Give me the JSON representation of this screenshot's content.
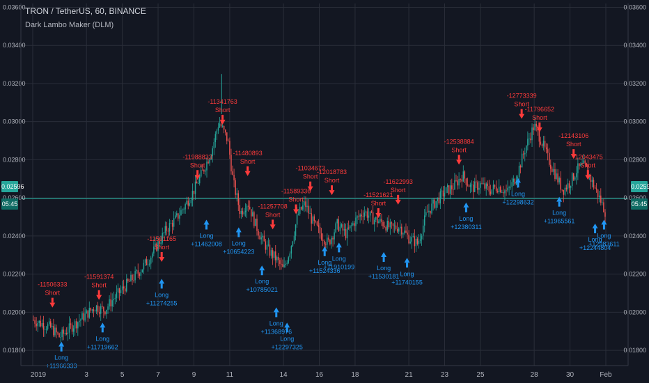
{
  "header": {
    "symbol": "TRON / TetherUS, 60, BINANCE",
    "indicator": "Dark Lambo Maker (DLM)"
  },
  "price_label": "0.02596",
  "countdown": "05:45",
  "colors": {
    "background": "#131722",
    "grid": "#2a2e39",
    "up": "#26a69a",
    "down": "#ef5350",
    "long": "#2196f3",
    "short": "#ff3b3b",
    "price_line": "#26a69a"
  },
  "chart_data": {
    "type": "candlestick",
    "y_axis": {
      "ylim": [
        0.0172,
        0.0362
      ],
      "ticks": [
        "0.01800",
        "0.02000",
        "0.02200",
        "0.02400",
        "0.02600",
        "0.02800",
        "0.03000",
        "0.03200",
        "0.03400",
        "0.03600"
      ]
    },
    "x_axis": {
      "ticks": [
        "2019",
        "3",
        "5",
        "7",
        "9",
        "11",
        "14",
        "16",
        "18",
        "21",
        "23",
        "25",
        "28",
        "30",
        "Feb"
      ]
    },
    "current_price": 0.02596,
    "price_path": [
      [
        0,
        0.0196
      ],
      [
        1.0,
        0.0192
      ],
      [
        1.5,
        0.0187
      ],
      [
        2.0,
        0.0191
      ],
      [
        2.5,
        0.0195
      ],
      [
        3.0,
        0.0199
      ],
      [
        3.5,
        0.0203
      ],
      [
        4.0,
        0.0201
      ],
      [
        4.5,
        0.0207
      ],
      [
        5.0,
        0.0212
      ],
      [
        5.5,
        0.0217
      ],
      [
        6.0,
        0.0222
      ],
      [
        6.5,
        0.0228
      ],
      [
        7.0,
        0.0236
      ],
      [
        7.5,
        0.0244
      ],
      [
        8.0,
        0.0249
      ],
      [
        8.5,
        0.0256
      ],
      [
        9.0,
        0.0264
      ],
      [
        9.5,
        0.0274
      ],
      [
        10.0,
        0.0285
      ],
      [
        10.4,
        0.03
      ],
      [
        10.6,
        0.0296
      ],
      [
        10.9,
        0.029
      ],
      [
        11.2,
        0.0268
      ],
      [
        11.6,
        0.0252
      ],
      [
        12.0,
        0.0258
      ],
      [
        12.4,
        0.0247
      ],
      [
        12.8,
        0.0238
      ],
      [
        13.2,
        0.0232
      ],
      [
        13.6,
        0.0228
      ],
      [
        14.0,
        0.0222
      ],
      [
        14.4,
        0.0234
      ],
      [
        14.8,
        0.0251
      ],
      [
        15.2,
        0.0257
      ],
      [
        15.6,
        0.0248
      ],
      [
        16.0,
        0.0242
      ],
      [
        16.5,
        0.0236
      ],
      [
        17.0,
        0.0246
      ],
      [
        17.5,
        0.0241
      ],
      [
        18.0,
        0.0248
      ],
      [
        18.5,
        0.0253
      ],
      [
        19.0,
        0.0249
      ],
      [
        19.5,
        0.0247
      ],
      [
        20.0,
        0.0244
      ],
      [
        20.5,
        0.0245
      ],
      [
        21.0,
        0.0239
      ],
      [
        21.5,
        0.0236
      ],
      [
        22.0,
        0.0252
      ],
      [
        22.5,
        0.0258
      ],
      [
        23.0,
        0.0263
      ],
      [
        23.5,
        0.0266
      ],
      [
        24.0,
        0.0272
      ],
      [
        24.5,
        0.0265
      ],
      [
        25.0,
        0.0267
      ],
      [
        25.5,
        0.0264
      ],
      [
        26.0,
        0.0266
      ],
      [
        26.5,
        0.0263
      ],
      [
        27.0,
        0.0271
      ],
      [
        27.5,
        0.0286
      ],
      [
        28.0,
        0.0298
      ],
      [
        28.4,
        0.029
      ],
      [
        28.8,
        0.028
      ],
      [
        29.2,
        0.0272
      ],
      [
        29.6,
        0.0264
      ],
      [
        30.0,
        0.0268
      ],
      [
        30.4,
        0.0275
      ],
      [
        30.8,
        0.0277
      ],
      [
        31.2,
        0.0269
      ],
      [
        31.6,
        0.0261
      ],
      [
        32.0,
        0.0252
      ],
      [
        32.3,
        0.0259
      ]
    ],
    "signals": [
      {
        "side": "short",
        "x": 1.1,
        "y": 0.0201,
        "label_a": "-11506333",
        "label_b": "Short"
      },
      {
        "side": "long",
        "x": 1.6,
        "y": 0.0186,
        "label_a": "Long",
        "label_b": "+11966333"
      },
      {
        "side": "short",
        "x": 3.7,
        "y": 0.0205,
        "label_a": "-11591374",
        "label_b": "Short"
      },
      {
        "side": "long",
        "x": 3.9,
        "y": 0.0196,
        "label_a": "Long",
        "label_b": "+11719662"
      },
      {
        "side": "short",
        "x": 7.2,
        "y": 0.0225,
        "label_a": "-11591165",
        "label_b": "Short"
      },
      {
        "side": "long",
        "x": 7.2,
        "y": 0.0219,
        "label_a": "Long",
        "label_b": "+11274255"
      },
      {
        "side": "short",
        "x": 9.2,
        "y": 0.0268,
        "label_a": "-11988833",
        "label_b": "Short"
      },
      {
        "side": "long",
        "x": 9.7,
        "y": 0.025,
        "label_a": "Long",
        "label_b": "+11462008"
      },
      {
        "side": "short",
        "x": 10.6,
        "y": 0.0297,
        "label_a": "-11341763",
        "label_b": "Short"
      },
      {
        "side": "short",
        "x": 12.0,
        "y": 0.027,
        "label_a": "-11480893",
        "label_b": "Short"
      },
      {
        "side": "long",
        "x": 11.5,
        "y": 0.0246,
        "label_a": "Long",
        "label_b": "+10654223"
      },
      {
        "side": "short",
        "x": 13.4,
        "y": 0.0242,
        "label_a": "-11257708",
        "label_b": "Short"
      },
      {
        "side": "long",
        "x": 12.8,
        "y": 0.0226,
        "label_a": "Long",
        "label_b": "+10785021"
      },
      {
        "side": "long",
        "x": 13.6,
        "y": 0.0204,
        "label_a": "Long",
        "label_b": "+11368976"
      },
      {
        "side": "short",
        "x": 14.7,
        "y": 0.025,
        "label_a": "-11589336",
        "label_b": "Short"
      },
      {
        "side": "long",
        "x": 14.2,
        "y": 0.0196,
        "label_a": "Long",
        "label_b": "+12297325"
      },
      {
        "side": "short",
        "x": 15.5,
        "y": 0.0262,
        "label_a": "-11034673",
        "label_b": "Short"
      },
      {
        "side": "short",
        "x": 16.7,
        "y": 0.026,
        "label_a": "-12018783",
        "label_b": "Short"
      },
      {
        "side": "long",
        "x": 16.3,
        "y": 0.0236,
        "label_a": "Long",
        "label_b": "+11524336"
      },
      {
        "side": "long",
        "x": 17.1,
        "y": 0.0238,
        "label_a": "Long",
        "label_b": "+11910199"
      },
      {
        "side": "short",
        "x": 19.3,
        "y": 0.0248,
        "label_a": "-11521621",
        "label_b": "Short"
      },
      {
        "side": "long",
        "x": 19.6,
        "y": 0.0233,
        "label_a": "Long",
        "label_b": "+11530181"
      },
      {
        "side": "short",
        "x": 20.4,
        "y": 0.0255,
        "label_a": "-11622993",
        "label_b": "Short"
      },
      {
        "side": "long",
        "x": 20.9,
        "y": 0.023,
        "label_a": "Long",
        "label_b": "+11740155"
      },
      {
        "side": "short",
        "x": 23.8,
        "y": 0.0276,
        "label_a": "-12538884",
        "label_b": "Short"
      },
      {
        "side": "long",
        "x": 24.2,
        "y": 0.0259,
        "label_a": "Long",
        "label_b": "+12380311"
      },
      {
        "side": "short",
        "x": 27.3,
        "y": 0.03,
        "label_a": "-12773339",
        "label_b": "Short"
      },
      {
        "side": "long",
        "x": 27.1,
        "y": 0.0272,
        "label_a": "Long",
        "label_b": "+12298632"
      },
      {
        "side": "short",
        "x": 28.3,
        "y": 0.0293,
        "label_a": "-11796652",
        "label_b": "Short"
      },
      {
        "side": "short",
        "x": 30.2,
        "y": 0.0279,
        "label_a": "-12143106",
        "label_b": "Short"
      },
      {
        "side": "long",
        "x": 29.4,
        "y": 0.0262,
        "label_a": "Long",
        "label_b": "+11965561"
      },
      {
        "side": "short",
        "x": 31.0,
        "y": 0.0268,
        "label_a": "-12043475",
        "label_b": "Short"
      },
      {
        "side": "long",
        "x": 31.4,
        "y": 0.0248,
        "label_a": "Long",
        "label_b": "+12244804"
      },
      {
        "side": "long",
        "x": 31.9,
        "y": 0.025,
        "label_a": "Long",
        "label_b": "+12983611"
      }
    ]
  }
}
